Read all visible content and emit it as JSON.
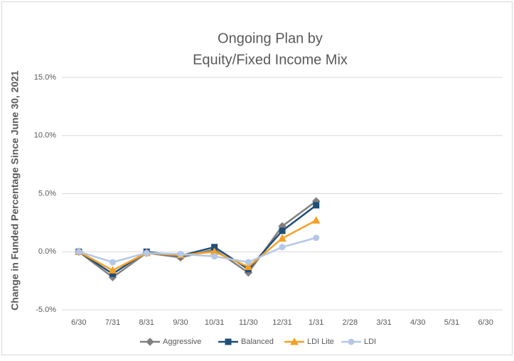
{
  "chart_data": {
    "type": "line",
    "title": [
      "Ongoing Plan by",
      "Equity/Fixed Income Mix"
    ],
    "y_label": "Change in Funded Percentage Since June 30, 2021",
    "categories": [
      "6/30",
      "7/31",
      "8/31",
      "9/30",
      "10/31",
      "11/30",
      "12/31",
      "1/31",
      "2/28",
      "3/31",
      "4/30",
      "5/31",
      "6/30"
    ],
    "series": [
      {
        "name": "Aggressive",
        "color": "#808080",
        "marker": "diamond",
        "values": [
          0,
          -2.2,
          -0.1,
          -0.5,
          0.2,
          -1.8,
          2.2,
          4.35,
          null,
          null,
          null,
          null,
          null
        ]
      },
      {
        "name": "Balanced",
        "color": "#1f4e79",
        "marker": "square",
        "values": [
          0,
          -1.9,
          0.0,
          -0.35,
          0.4,
          -1.5,
          1.8,
          4.0,
          null,
          null,
          null,
          null,
          null
        ]
      },
      {
        "name": "LDI Lite",
        "color": "#f4a024",
        "marker": "triangle",
        "values": [
          0,
          -1.6,
          -0.1,
          -0.3,
          0.0,
          -1.3,
          1.15,
          2.7,
          null,
          null,
          null,
          null,
          null
        ]
      },
      {
        "name": "LDI",
        "color": "#b4c7e7",
        "marker": "circle",
        "values": [
          0,
          -0.9,
          -0.1,
          -0.2,
          -0.4,
          -0.9,
          0.4,
          1.2,
          null,
          null,
          null,
          null,
          null
        ]
      }
    ],
    "ylim": [
      -5,
      15
    ],
    "yticks": [
      {
        "value": -5,
        "label": "-5.0%"
      },
      {
        "value": 0,
        "label": "0.0%"
      },
      {
        "value": 5,
        "label": "5.0%"
      },
      {
        "value": 10,
        "label": "10.0%"
      },
      {
        "value": 15,
        "label": "15.0%"
      }
    ],
    "grid": true,
    "legend": "bottom"
  }
}
